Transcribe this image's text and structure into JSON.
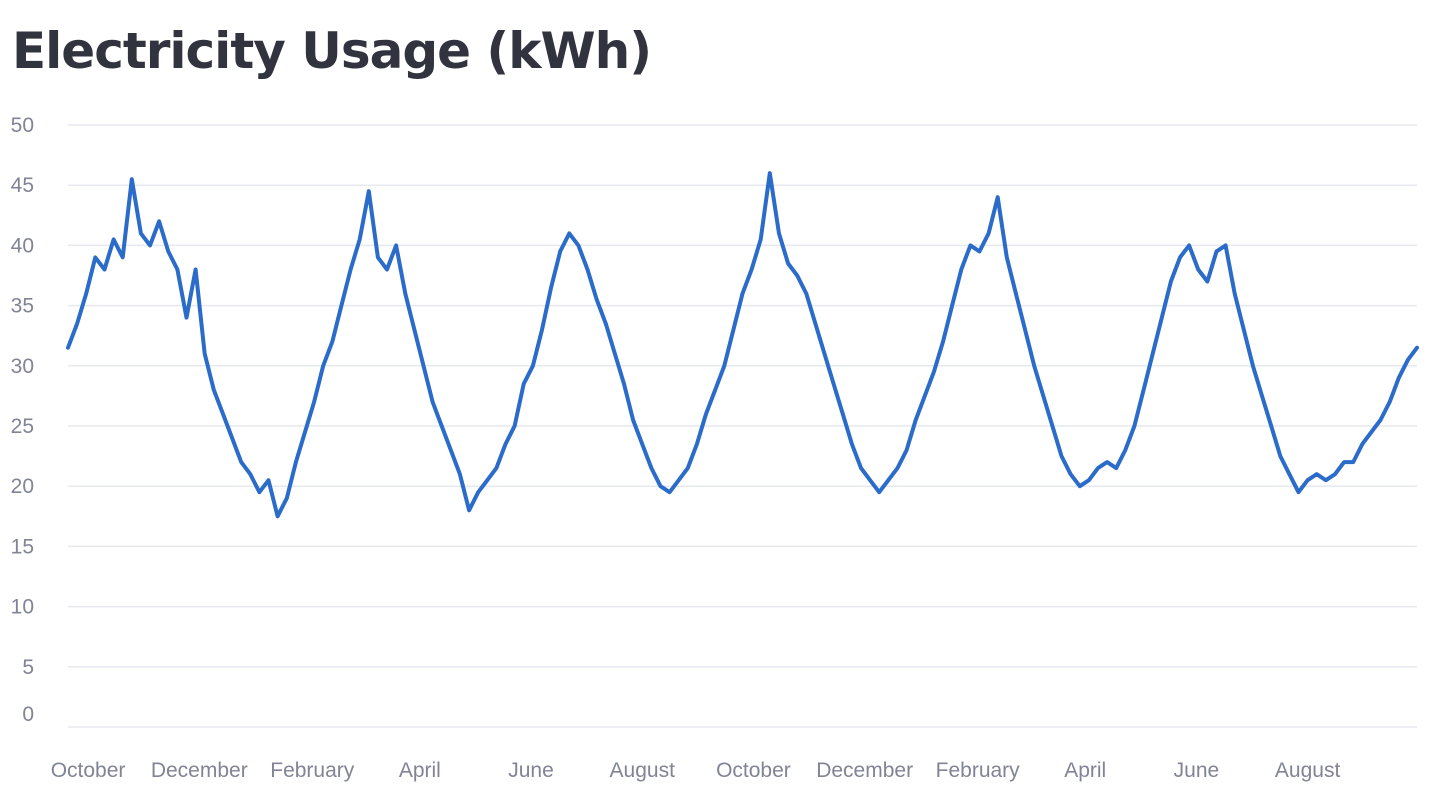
{
  "title": "Electricity Usage (kWh)",
  "colors": {
    "line": "#2b6bc9",
    "grid": "#e6e9ef",
    "title": "#31333f",
    "ticks": "#808495"
  },
  "chart_data": {
    "type": "line",
    "title": "Electricity Usage (kWh)",
    "xlabel": "",
    "ylabel": "",
    "ylim": [
      0,
      50
    ],
    "y_ticks": [
      0,
      5,
      10,
      15,
      20,
      25,
      30,
      35,
      40,
      45,
      50
    ],
    "x_ticks": [
      {
        "label": "October",
        "date": "2020-10-01"
      },
      {
        "label": "December",
        "date": "2020-12-01"
      },
      {
        "label": "February",
        "date": "2021-02-01"
      },
      {
        "label": "April",
        "date": "2021-04-01"
      },
      {
        "label": "June",
        "date": "2021-06-01"
      },
      {
        "label": "August",
        "date": "2021-08-01"
      },
      {
        "label": "October",
        "date": "2021-10-01"
      },
      {
        "label": "December",
        "date": "2021-12-01"
      },
      {
        "label": "February",
        "date": "2022-02-01"
      },
      {
        "label": "April",
        "date": "2022-04-01"
      },
      {
        "label": "June",
        "date": "2022-06-01"
      },
      {
        "label": "August",
        "date": "2022-08-01"
      }
    ],
    "xlim": [
      "2020-09-20",
      "2022-09-30"
    ],
    "grid": true,
    "legend": "none",
    "series": [
      {
        "points": [
          [
            "2020-09-20",
            31.5
          ],
          [
            "2020-09-25",
            33.5
          ],
          [
            "2020-09-30",
            36.0
          ],
          [
            "2020-10-05",
            39.0
          ],
          [
            "2020-10-10",
            38.0
          ],
          [
            "2020-10-15",
            40.5
          ],
          [
            "2020-10-20",
            39.0
          ],
          [
            "2020-10-25",
            45.5
          ],
          [
            "2020-10-30",
            41.0
          ],
          [
            "2020-11-04",
            40.0
          ],
          [
            "2020-11-09",
            42.0
          ],
          [
            "2020-11-14",
            39.5
          ],
          [
            "2020-11-19",
            38.0
          ],
          [
            "2020-11-24",
            34.0
          ],
          [
            "2020-11-29",
            38.0
          ],
          [
            "2020-12-04",
            31.0
          ],
          [
            "2020-12-09",
            28.0
          ],
          [
            "2020-12-14",
            26.0
          ],
          [
            "2020-12-19",
            24.0
          ],
          [
            "2020-12-24",
            22.0
          ],
          [
            "2020-12-29",
            21.0
          ],
          [
            "2021-01-03",
            19.5
          ],
          [
            "2021-01-08",
            20.5
          ],
          [
            "2021-01-13",
            17.5
          ],
          [
            "2021-01-18",
            19.0
          ],
          [
            "2021-01-23",
            22.0
          ],
          [
            "2021-01-28",
            24.5
          ],
          [
            "2021-02-02",
            27.0
          ],
          [
            "2021-02-07",
            30.0
          ],
          [
            "2021-02-12",
            32.0
          ],
          [
            "2021-02-17",
            35.0
          ],
          [
            "2021-02-22",
            38.0
          ],
          [
            "2021-02-27",
            40.5
          ],
          [
            "2021-03-04",
            44.5
          ],
          [
            "2021-03-09",
            39.0
          ],
          [
            "2021-03-14",
            38.0
          ],
          [
            "2021-03-19",
            40.0
          ],
          [
            "2021-03-24",
            36.0
          ],
          [
            "2021-03-29",
            33.0
          ],
          [
            "2021-04-03",
            30.0
          ],
          [
            "2021-04-08",
            27.0
          ],
          [
            "2021-04-13",
            25.0
          ],
          [
            "2021-04-18",
            23.0
          ],
          [
            "2021-04-23",
            21.0
          ],
          [
            "2021-04-28",
            18.0
          ],
          [
            "2021-05-03",
            19.5
          ],
          [
            "2021-05-08",
            20.5
          ],
          [
            "2021-05-13",
            21.5
          ],
          [
            "2021-05-18",
            23.5
          ],
          [
            "2021-05-23",
            25.0
          ],
          [
            "2021-05-28",
            28.5
          ],
          [
            "2021-06-02",
            30.0
          ],
          [
            "2021-06-07",
            33.0
          ],
          [
            "2021-06-12",
            36.5
          ],
          [
            "2021-06-17",
            39.5
          ],
          [
            "2021-06-22",
            41.0
          ],
          [
            "2021-06-27",
            40.0
          ],
          [
            "2021-07-02",
            38.0
          ],
          [
            "2021-07-07",
            35.5
          ],
          [
            "2021-07-12",
            33.5
          ],
          [
            "2021-07-17",
            31.0
          ],
          [
            "2021-07-22",
            28.5
          ],
          [
            "2021-07-27",
            25.5
          ],
          [
            "2021-08-01",
            23.5
          ],
          [
            "2021-08-06",
            21.5
          ],
          [
            "2021-08-11",
            20.0
          ],
          [
            "2021-08-16",
            19.5
          ],
          [
            "2021-08-21",
            20.5
          ],
          [
            "2021-08-26",
            21.5
          ],
          [
            "2021-08-31",
            23.5
          ],
          [
            "2021-09-05",
            26.0
          ],
          [
            "2021-09-10",
            28.0
          ],
          [
            "2021-09-15",
            30.0
          ],
          [
            "2021-09-20",
            33.0
          ],
          [
            "2021-09-25",
            36.0
          ],
          [
            "2021-09-30",
            38.0
          ],
          [
            "2021-10-05",
            40.5
          ],
          [
            "2021-10-10",
            46.0
          ],
          [
            "2021-10-15",
            41.0
          ],
          [
            "2021-10-20",
            38.5
          ],
          [
            "2021-10-25",
            37.5
          ],
          [
            "2021-10-30",
            36.0
          ],
          [
            "2021-11-04",
            33.5
          ],
          [
            "2021-11-09",
            31.0
          ],
          [
            "2021-11-14",
            28.5
          ],
          [
            "2021-11-19",
            26.0
          ],
          [
            "2021-11-24",
            23.5
          ],
          [
            "2021-11-29",
            21.5
          ],
          [
            "2021-12-04",
            20.5
          ],
          [
            "2021-12-09",
            19.5
          ],
          [
            "2021-12-14",
            20.5
          ],
          [
            "2021-12-19",
            21.5
          ],
          [
            "2021-12-24",
            23.0
          ],
          [
            "2021-12-29",
            25.5
          ],
          [
            "2022-01-03",
            27.5
          ],
          [
            "2022-01-08",
            29.5
          ],
          [
            "2022-01-13",
            32.0
          ],
          [
            "2022-01-18",
            35.0
          ],
          [
            "2022-01-23",
            38.0
          ],
          [
            "2022-01-28",
            40.0
          ],
          [
            "2022-02-02",
            39.5
          ],
          [
            "2022-02-07",
            41.0
          ],
          [
            "2022-02-12",
            44.0
          ],
          [
            "2022-02-17",
            39.0
          ],
          [
            "2022-02-22",
            36.0
          ],
          [
            "2022-02-27",
            33.0
          ],
          [
            "2022-03-04",
            30.0
          ],
          [
            "2022-03-09",
            27.5
          ],
          [
            "2022-03-14",
            25.0
          ],
          [
            "2022-03-19",
            22.5
          ],
          [
            "2022-03-24",
            21.0
          ],
          [
            "2022-03-29",
            20.0
          ],
          [
            "2022-04-03",
            20.5
          ],
          [
            "2022-04-08",
            21.5
          ],
          [
            "2022-04-13",
            22.0
          ],
          [
            "2022-04-18",
            21.5
          ],
          [
            "2022-04-23",
            23.0
          ],
          [
            "2022-04-28",
            25.0
          ],
          [
            "2022-05-03",
            28.0
          ],
          [
            "2022-05-08",
            31.0
          ],
          [
            "2022-05-13",
            34.0
          ],
          [
            "2022-05-18",
            37.0
          ],
          [
            "2022-05-23",
            39.0
          ],
          [
            "2022-05-28",
            40.0
          ],
          [
            "2022-06-02",
            38.0
          ],
          [
            "2022-06-07",
            37.0
          ],
          [
            "2022-06-12",
            39.5
          ],
          [
            "2022-06-17",
            40.0
          ],
          [
            "2022-06-22",
            36.0
          ],
          [
            "2022-06-27",
            33.0
          ],
          [
            "2022-07-02",
            30.0
          ],
          [
            "2022-07-07",
            27.5
          ],
          [
            "2022-07-12",
            25.0
          ],
          [
            "2022-07-17",
            22.5
          ],
          [
            "2022-07-22",
            21.0
          ],
          [
            "2022-07-27",
            19.5
          ],
          [
            "2022-08-01",
            20.5
          ],
          [
            "2022-08-06",
            21.0
          ],
          [
            "2022-08-11",
            20.5
          ],
          [
            "2022-08-16",
            21.0
          ],
          [
            "2022-08-21",
            22.0
          ],
          [
            "2022-08-26",
            22.0
          ],
          [
            "2022-08-31",
            23.5
          ],
          [
            "2022-09-05",
            24.5
          ],
          [
            "2022-09-10",
            25.5
          ],
          [
            "2022-09-15",
            27.0
          ],
          [
            "2022-09-20",
            29.0
          ],
          [
            "2022-09-25",
            30.5
          ],
          [
            "2022-09-30",
            31.5
          ]
        ]
      }
    ]
  }
}
